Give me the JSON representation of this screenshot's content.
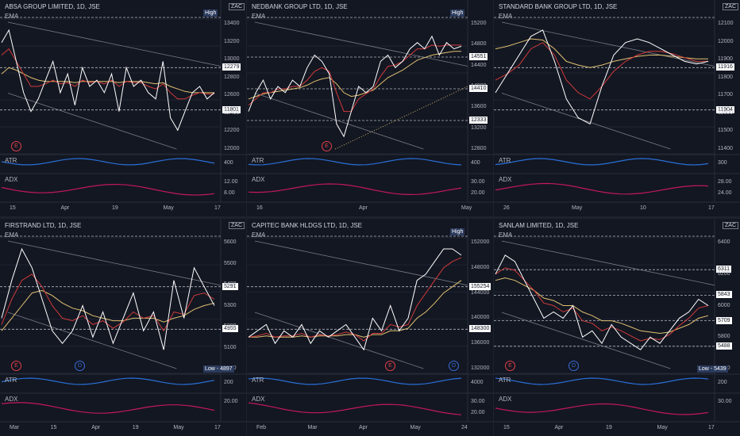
{
  "panels": [
    {
      "id": "absa",
      "title": "ABSA GROUP LIMITED, 1D, JSE",
      "ema_label": "EMA",
      "atr_label": "ATR",
      "adx_label": "ADX",
      "currency": "ZAC",
      "hilo": "High",
      "yticks": [
        "13400",
        "13200",
        "13000",
        "12800",
        "12600",
        "12400",
        "12200",
        "12000"
      ],
      "price_tags": [
        "12279",
        "11801"
      ],
      "atr_ticks": [
        "400"
      ],
      "adx_ticks": [
        "12.00",
        "8.00"
      ],
      "xticks": [
        "15",
        "Apr",
        "19",
        "May",
        "17"
      ],
      "markers": [
        "E"
      ]
    },
    {
      "id": "nedbank",
      "title": "NEDBANK GROUP LTD, 1D, JSE",
      "ema_label": "EMA",
      "atr_label": "ATR",
      "adx_label": "ADX",
      "currency": "",
      "hilo": "High",
      "yticks": [
        "15200",
        "14800",
        "14400",
        "14000",
        "13600",
        "13200",
        "12800"
      ],
      "price_tags": [
        "14551",
        "14410",
        "12333"
      ],
      "atr_ticks": [
        "400"
      ],
      "adx_ticks": [
        "30.00",
        "20.00"
      ],
      "xticks": [
        "16",
        "Apr",
        "May"
      ],
      "markers": [
        "E"
      ]
    },
    {
      "id": "standard",
      "title": "STANDARD BANK GROUP LTD, 1D, JSE",
      "ema_label": "EMA",
      "atr_label": "ATR",
      "adx_label": "ADX",
      "currency": "ZAC",
      "hilo": "",
      "yticks": [
        "12100",
        "12000",
        "11900",
        "11800",
        "11700",
        "11600",
        "11500",
        "11400"
      ],
      "price_tags": [
        "11916",
        "11904"
      ],
      "atr_ticks": [
        "300"
      ],
      "adx_ticks": [
        "28.00",
        "24.00"
      ],
      "xticks": [
        "26",
        "May",
        "10",
        "17"
      ],
      "markers": []
    },
    {
      "id": "firstrand",
      "title": "FIRSTRAND LTD, 1D, JSE",
      "ema_label": "EMA",
      "atr_label": "ATR",
      "adx_label": "ADX",
      "currency": "ZAC",
      "hilo": "Low",
      "hilo_value": "4897",
      "yticks": [
        "5600",
        "5500",
        "5400",
        "5300",
        "5200",
        "5100",
        "5000"
      ],
      "price_tags": [
        "5291",
        "4955"
      ],
      "atr_ticks": [
        "200"
      ],
      "adx_ticks": [
        "20.00"
      ],
      "xticks": [
        "Mar",
        "15",
        "Apr",
        "19",
        "May",
        "17"
      ],
      "markers": [
        "E",
        "D"
      ]
    },
    {
      "id": "capitec",
      "title": "CAPITEC BANK HLDGS LTD, 1D, JSE",
      "ema_label": "EMA",
      "atr_label": "ATR",
      "adx_label": "ADX",
      "currency": "",
      "hilo": "High",
      "yticks": [
        "152000",
        "148000",
        "144000",
        "140000",
        "136000",
        "132000"
      ],
      "price_tags": [
        "155254",
        "148300"
      ],
      "atr_ticks": [
        "4000"
      ],
      "adx_ticks": [
        "30.00",
        "20.00"
      ],
      "xticks": [
        "Feb",
        "Mar",
        "Apr",
        "May",
        "24"
      ],
      "markers": [
        "E",
        "D"
      ]
    },
    {
      "id": "sanlam",
      "title": "SANLAM LIMITED, 1D, JSE",
      "ema_label": "EMA",
      "atr_label": "ATR",
      "adx_label": "ADX",
      "currency": "ZAC",
      "hilo": "Low",
      "hilo_value": "5439",
      "yticks": [
        "6400",
        "6200",
        "6000",
        "5800",
        "5600"
      ],
      "price_tags": [
        "6311",
        "5843",
        "5709",
        "5488"
      ],
      "atr_ticks": [
        "200"
      ],
      "adx_ticks": [
        "30.00"
      ],
      "xticks": [
        "15",
        "Apr",
        "19",
        "May",
        "17"
      ],
      "markers": [
        "E",
        "D"
      ]
    }
  ],
  "colors": {
    "price": "#ffffff",
    "ema_fast": "#d03a3a",
    "ema_slow": "#e0c070",
    "atr": "#2a6fd6",
    "adx": "#c2185b",
    "trend": "#787b86",
    "dotted": "#c8b06a"
  }
}
